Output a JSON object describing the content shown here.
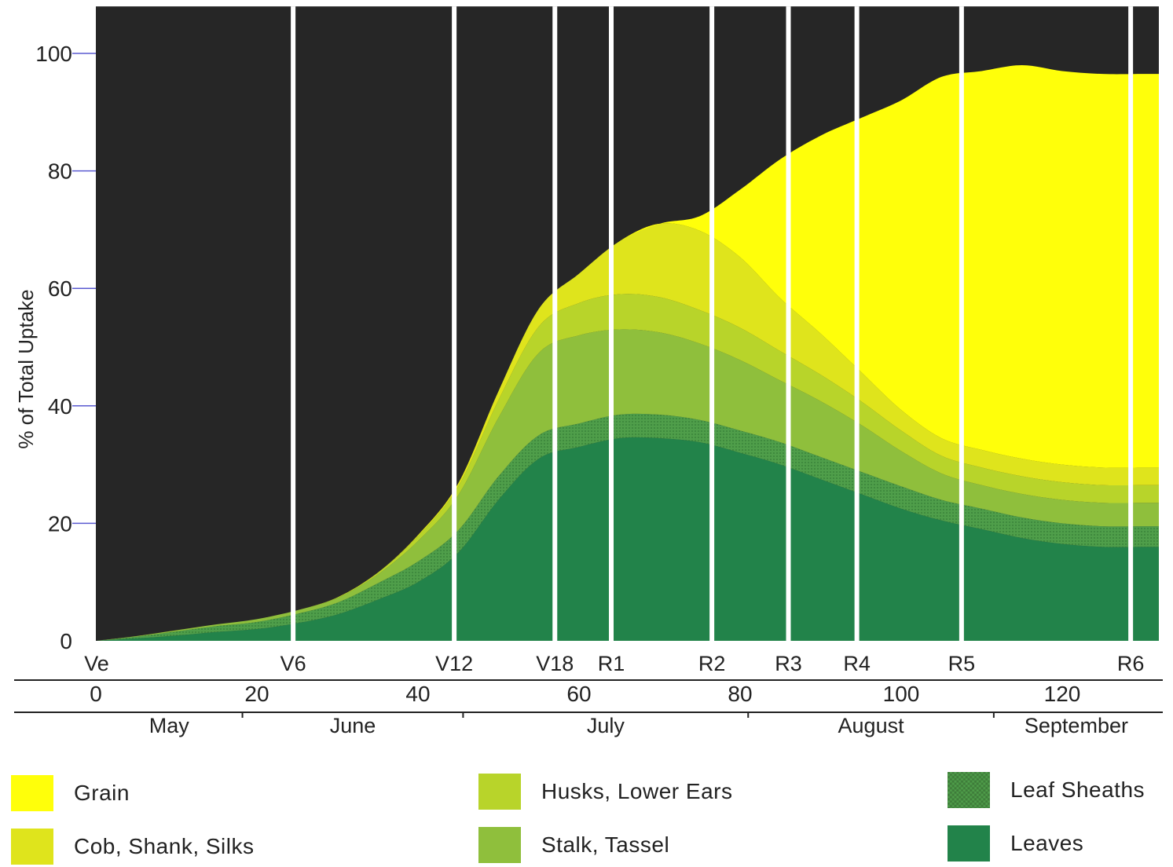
{
  "chart_data": {
    "type": "area",
    "stacked": true,
    "ylabel": "% of Total Uptake",
    "xlabel": "",
    "ylim": [
      0,
      108
    ],
    "xlim": [
      0,
      132
    ],
    "yticks": [
      0,
      20,
      40,
      60,
      80,
      100
    ],
    "xticks": [
      0,
      20,
      40,
      60,
      80,
      100,
      120
    ],
    "background_color": "#262626",
    "x": [
      0,
      5,
      10,
      15,
      20,
      25,
      30,
      35,
      40,
      45,
      50,
      55,
      60,
      65,
      70,
      75,
      80,
      85,
      90,
      95,
      100,
      105,
      110,
      115,
      120,
      125,
      130,
      132
    ],
    "series": [
      {
        "name": "Leaves",
        "color": "#22834a",
        "values": [
          0,
          0.4,
          0.9,
          1.5,
          2,
          3,
          4.5,
          7,
          10,
          15,
          24,
          31,
          33,
          34.5,
          34.5,
          33.8,
          32,
          30,
          27.5,
          25,
          22.5,
          20.5,
          19,
          17.5,
          16.5,
          16,
          16,
          16
        ]
      },
      {
        "name": "Leaf Sheaths",
        "color": "#4f9e4a",
        "values": [
          0,
          0.3,
          0.7,
          1,
          1.2,
          1.6,
          2,
          2.8,
          3.5,
          3.8,
          4,
          4,
          4,
          4,
          4,
          3.8,
          3.8,
          3.8,
          3.8,
          3.8,
          3.8,
          3.5,
          3.5,
          3.5,
          3.5,
          3.5,
          3.5,
          3.5
        ]
      },
      {
        "name": "Stalk, Tassel",
        "color": "#8fbf3c",
        "values": [
          0,
          0.1,
          0.2,
          0.3,
          0.5,
          0.6,
          0.8,
          1.5,
          3.5,
          6,
          10,
          14,
          15,
          14.5,
          14,
          13,
          12,
          10.5,
          9.5,
          8,
          6,
          4.5,
          4,
          4,
          4,
          4,
          4,
          4
        ]
      },
      {
        "name": "Husks, Lower Ears",
        "color": "#b8d42a",
        "values": [
          0,
          0,
          0,
          0,
          0,
          0,
          0.1,
          0.3,
          0.8,
          1.5,
          3,
          4.5,
          5.5,
          6,
          6,
          5.7,
          5.5,
          5,
          4.5,
          4,
          3.5,
          3,
          3,
          3,
          3,
          3,
          3,
          3
        ]
      },
      {
        "name": "Cob, Shank, Silks",
        "color": "#dfe41c",
        "values": [
          0,
          0,
          0,
          0,
          0,
          0,
          0,
          0,
          0.2,
          0.5,
          1.5,
          3,
          5,
          9,
          12.5,
          13.5,
          12,
          9,
          7,
          5,
          3.5,
          3,
          3,
          3,
          3,
          3,
          3,
          3
        ]
      },
      {
        "name": "Grain",
        "color": "#ffff0a",
        "values": [
          0,
          0,
          0,
          0,
          0,
          0,
          0,
          0,
          0,
          0,
          0,
          0,
          0,
          0,
          0,
          2.5,
          11.5,
          23.7,
          33.7,
          43.2,
          52.7,
          61.5,
          64.5,
          67,
          67,
          67,
          67,
          67
        ]
      }
    ],
    "stage_markers": [
      {
        "label": "Ve",
        "x": 0
      },
      {
        "label": "V6",
        "x": 24.5
      },
      {
        "label": "V12",
        "x": 44.5
      },
      {
        "label": "V18",
        "x": 57
      },
      {
        "label": "R1",
        "x": 64
      },
      {
        "label": "R2",
        "x": 76.5
      },
      {
        "label": "R3",
        "x": 86
      },
      {
        "label": "R4",
        "x": 94.5
      },
      {
        "label": "R5",
        "x": 107.5
      },
      {
        "label": "R6",
        "x": 128.5
      }
    ],
    "months": [
      {
        "label": "May",
        "start": 0,
        "end": 18.2
      },
      {
        "label": "June",
        "start": 18.2,
        "end": 45.6
      },
      {
        "label": "July",
        "start": 45.6,
        "end": 81
      },
      {
        "label": "August",
        "start": 81,
        "end": 111.5
      },
      {
        "label": "September",
        "start": 111.5,
        "end": 132
      }
    ],
    "grid": false,
    "legend_position": "bottom"
  },
  "legend": [
    {
      "label": "Grain",
      "color": "#ffff0a"
    },
    {
      "label": "Cob, Shank, Silks",
      "color": "#dfe41c"
    },
    {
      "label": "Husks, Lower Ears",
      "color": "#b8d42a"
    },
    {
      "label": "Stalk, Tassel",
      "color": "#8fbf3c"
    },
    {
      "label": "Leaf Sheaths",
      "color": "#4f9e4a"
    },
    {
      "label": "Leaves",
      "color": "#22834a"
    }
  ]
}
